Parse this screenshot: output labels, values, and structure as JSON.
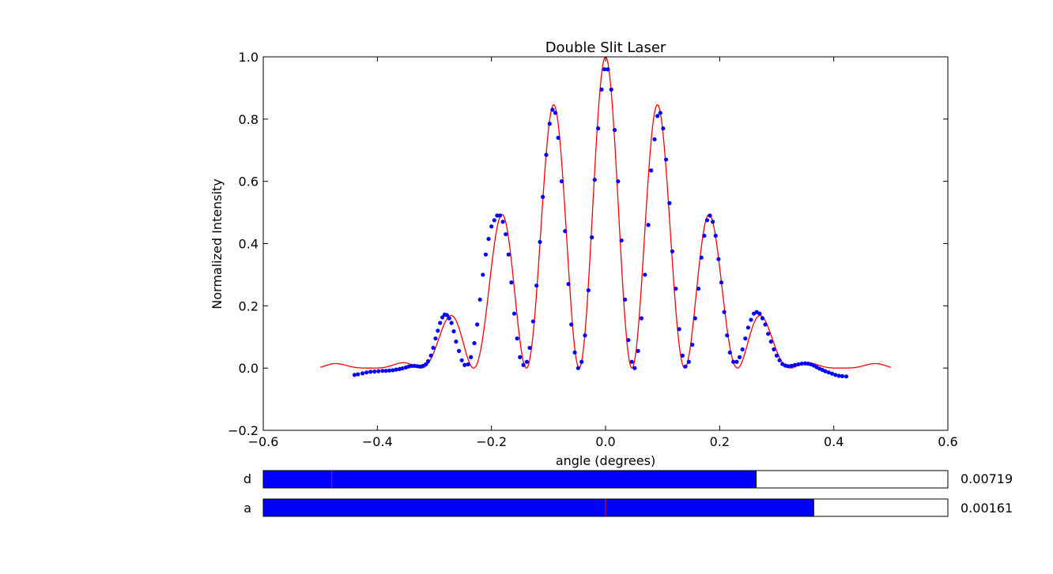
{
  "chart_data": {
    "type": "scatter",
    "title": "Double Slit Laser",
    "xlabel": "angle (degrees)",
    "ylabel": "Normalized Intensity",
    "xlim": [
      -0.6,
      0.6
    ],
    "ylim": [
      -0.2,
      1.0
    ],
    "x_ticks": [
      -0.6,
      -0.4,
      -0.2,
      0.0,
      0.2,
      0.4,
      0.6
    ],
    "y_ticks": [
      -0.2,
      0.0,
      0.2,
      0.4,
      0.6,
      0.8,
      1.0
    ],
    "x_tick_labels": [
      "−0.6",
      "−0.4",
      "−0.2",
      "0.0",
      "0.2",
      "0.4",
      "0.6"
    ],
    "y_tick_labels": [
      "−0.2",
      "0.0",
      "0.2",
      "0.4",
      "0.6",
      "0.8",
      "1.0"
    ],
    "grid": false,
    "series": [
      {
        "kind": "measured points",
        "color": "#0000ff",
        "points": [
          [
            -0.44,
            -0.022
          ],
          [
            -0.434,
            -0.02
          ],
          [
            -0.426,
            -0.017
          ],
          [
            -0.419,
            -0.014
          ],
          [
            -0.412,
            -0.012
          ],
          [
            -0.405,
            -0.011
          ],
          [
            -0.398,
            -0.01
          ],
          [
            -0.391,
            -0.009
          ],
          [
            -0.385,
            -0.009
          ],
          [
            -0.379,
            -0.008
          ],
          [
            -0.373,
            -0.007
          ],
          [
            -0.367,
            -0.005
          ],
          [
            -0.361,
            -0.003
          ],
          [
            -0.356,
            -0.001
          ],
          [
            -0.35,
            0.002
          ],
          [
            -0.345,
            0.005
          ],
          [
            -0.34,
            0.007
          ],
          [
            -0.335,
            0.007
          ],
          [
            -0.33,
            0.006
          ],
          [
            -0.325,
            0.005
          ],
          [
            -0.32,
            0.007
          ],
          [
            -0.315,
            0.012
          ],
          [
            -0.311,
            0.022
          ],
          [
            -0.306,
            0.04
          ],
          [
            -0.302,
            0.065
          ],
          [
            -0.298,
            0.095
          ],
          [
            -0.294,
            0.12
          ],
          [
            -0.29,
            0.145
          ],
          [
            -0.286,
            0.163
          ],
          [
            -0.282,
            0.172
          ],
          [
            -0.278,
            0.17
          ],
          [
            -0.274,
            0.16
          ],
          [
            -0.27,
            0.145
          ],
          [
            -0.266,
            0.118
          ],
          [
            -0.262,
            0.085
          ],
          [
            -0.257,
            0.055
          ],
          [
            -0.252,
            0.025
          ],
          [
            -0.247,
            0.01
          ],
          [
            -0.241,
            0.012
          ],
          [
            -0.236,
            0.035
          ],
          [
            -0.23,
            0.08
          ],
          [
            -0.225,
            0.14
          ],
          [
            -0.22,
            0.22
          ],
          [
            -0.215,
            0.3
          ],
          [
            -0.21,
            0.365
          ],
          [
            -0.205,
            0.415
          ],
          [
            -0.2,
            0.455
          ],
          [
            -0.195,
            0.475
          ],
          [
            -0.19,
            0.49
          ],
          [
            -0.185,
            0.49
          ],
          [
            -0.18,
            0.47
          ],
          [
            -0.175,
            0.43
          ],
          [
            -0.17,
            0.365
          ],
          [
            -0.165,
            0.275
          ],
          [
            -0.16,
            0.175
          ],
          [
            -0.155,
            0.095
          ],
          [
            -0.15,
            0.035
          ],
          [
            -0.144,
            0.01
          ],
          [
            -0.138,
            0.02
          ],
          [
            -0.133,
            0.065
          ],
          [
            -0.127,
            0.15
          ],
          [
            -0.121,
            0.265
          ],
          [
            -0.115,
            0.405
          ],
          [
            -0.11,
            0.55
          ],
          [
            -0.104,
            0.685
          ],
          [
            -0.098,
            0.785
          ],
          [
            -0.093,
            0.83
          ],
          [
            -0.088,
            0.82
          ],
          [
            -0.083,
            0.74
          ],
          [
            -0.077,
            0.6
          ],
          [
            -0.071,
            0.44
          ],
          [
            -0.065,
            0.27
          ],
          [
            -0.06,
            0.14
          ],
          [
            -0.054,
            0.05
          ],
          [
            -0.048,
            0.0
          ],
          [
            -0.042,
            0.02
          ],
          [
            -0.036,
            0.105
          ],
          [
            -0.03,
            0.25
          ],
          [
            -0.024,
            0.42
          ],
          [
            -0.019,
            0.605
          ],
          [
            -0.013,
            0.77
          ],
          [
            -0.007,
            0.895
          ],
          [
            -0.002,
            0.96
          ],
          [
            0.004,
            0.96
          ],
          [
            0.01,
            0.895
          ],
          [
            0.016,
            0.765
          ],
          [
            0.022,
            0.6
          ],
          [
            0.028,
            0.41
          ],
          [
            0.034,
            0.22
          ],
          [
            0.04,
            0.09
          ],
          [
            0.046,
            0.02
          ],
          [
            0.051,
            0.0
          ],
          [
            0.057,
            0.055
          ],
          [
            0.063,
            0.16
          ],
          [
            0.069,
            0.3
          ],
          [
            0.075,
            0.46
          ],
          [
            0.08,
            0.635
          ],
          [
            0.086,
            0.735
          ],
          [
            0.091,
            0.81
          ],
          [
            0.096,
            0.82
          ],
          [
            0.101,
            0.77
          ],
          [
            0.106,
            0.67
          ],
          [
            0.112,
            0.53
          ],
          [
            0.117,
            0.375
          ],
          [
            0.123,
            0.255
          ],
          [
            0.129,
            0.125
          ],
          [
            0.135,
            0.04
          ],
          [
            0.14,
            0.005
          ],
          [
            0.146,
            0.02
          ],
          [
            0.152,
            0.075
          ],
          [
            0.157,
            0.16
          ],
          [
            0.163,
            0.255
          ],
          [
            0.168,
            0.355
          ],
          [
            0.173,
            0.425
          ],
          [
            0.178,
            0.475
          ],
          [
            0.183,
            0.49
          ],
          [
            0.188,
            0.47
          ],
          [
            0.193,
            0.425
          ],
          [
            0.198,
            0.35
          ],
          [
            0.203,
            0.275
          ],
          [
            0.208,
            0.18
          ],
          [
            0.213,
            0.105
          ],
          [
            0.218,
            0.05
          ],
          [
            0.224,
            0.02
          ],
          [
            0.23,
            0.02
          ],
          [
            0.235,
            0.035
          ],
          [
            0.24,
            0.06
          ],
          [
            0.245,
            0.095
          ],
          [
            0.25,
            0.13
          ],
          [
            0.255,
            0.155
          ],
          [
            0.26,
            0.175
          ],
          [
            0.265,
            0.18
          ],
          [
            0.27,
            0.175
          ],
          [
            0.275,
            0.16
          ],
          [
            0.28,
            0.14
          ],
          [
            0.285,
            0.11
          ],
          [
            0.29,
            0.085
          ],
          [
            0.295,
            0.06
          ],
          [
            0.3,
            0.04
          ],
          [
            0.305,
            0.025
          ],
          [
            0.31,
            0.013
          ],
          [
            0.315,
            0.008
          ],
          [
            0.32,
            0.006
          ],
          [
            0.326,
            0.007
          ],
          [
            0.332,
            0.01
          ],
          [
            0.338,
            0.012
          ],
          [
            0.344,
            0.014
          ],
          [
            0.35,
            0.015
          ],
          [
            0.355,
            0.014
          ],
          [
            0.36,
            0.012
          ],
          [
            0.365,
            0.008
          ],
          [
            0.37,
            0.003
          ],
          [
            0.375,
            -0.002
          ],
          [
            0.38,
            -0.006
          ],
          [
            0.385,
            -0.01
          ],
          [
            0.391,
            -0.014
          ],
          [
            0.397,
            -0.018
          ],
          [
            0.403,
            -0.022
          ],
          [
            0.409,
            -0.025
          ],
          [
            0.415,
            -0.026
          ],
          [
            0.422,
            -0.027
          ]
        ]
      },
      {
        "kind": "fit curve",
        "color": "#ff0000",
        "x_range": [
          -0.5,
          0.5
        ],
        "fringe_period_deg": 0.0925,
        "envelope_first_zero_deg": 0.41
      }
    ]
  },
  "sliders": [
    {
      "label": "d",
      "value_text": "0.00719",
      "fill_fraction": 0.72,
      "marker_fraction": 0.1,
      "color": "#0000ff"
    },
    {
      "label": "a",
      "value_text": "0.00161",
      "fill_fraction": 0.804,
      "marker_fraction": 0.5,
      "color": "#0000ff"
    }
  ]
}
